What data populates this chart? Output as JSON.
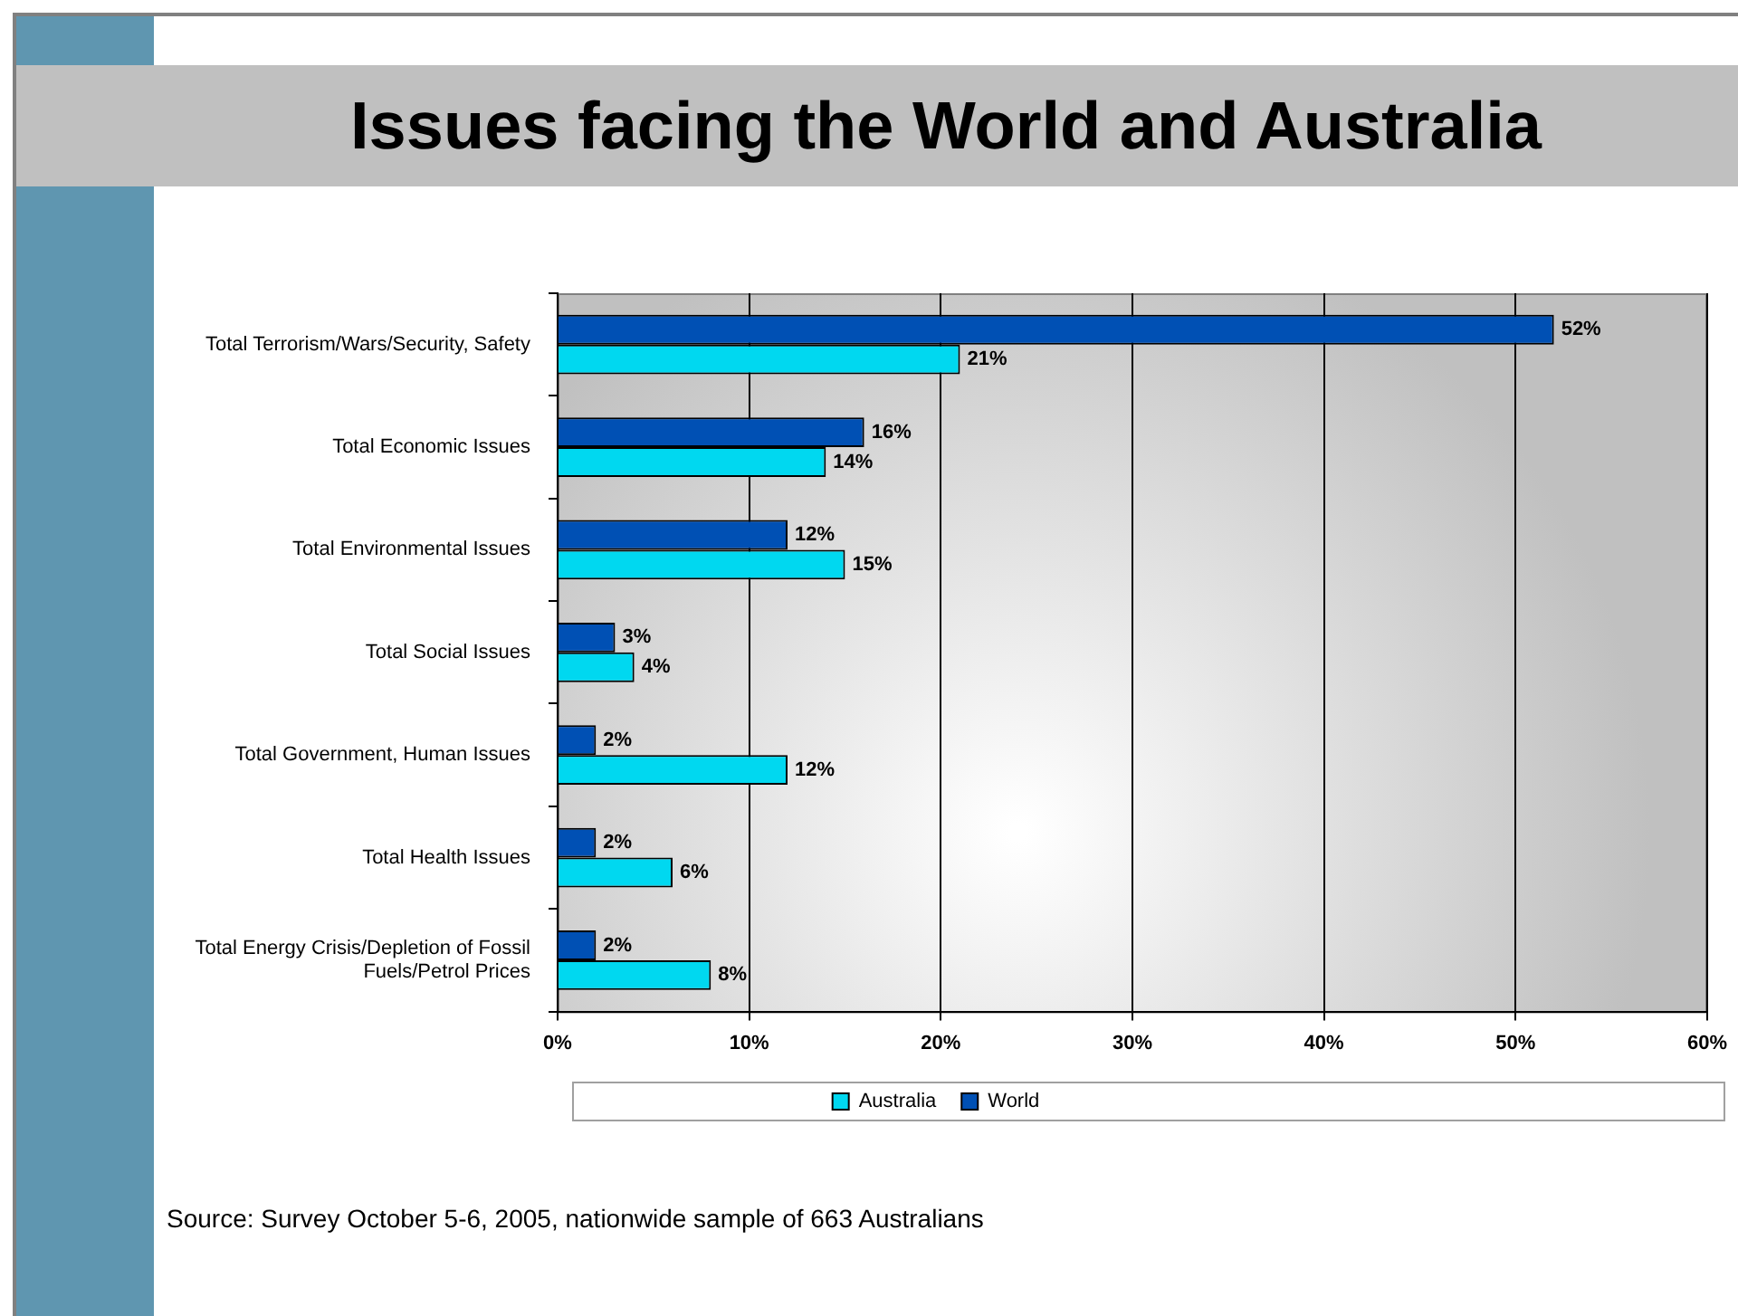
{
  "chart_data": {
    "type": "bar",
    "orientation": "horizontal",
    "title": "Issues facing the World and Australia",
    "categories": [
      "Total Terrorism/Wars/Security, Safety",
      "Total Economic Issues",
      "Total Environmental Issues",
      "Total Social Issues",
      "Total Government, Human Issues",
      "Total Health Issues",
      "Total Energy Crisis/Depletion of Fossil Fuels/Petrol Prices"
    ],
    "series": [
      {
        "name": "Australia",
        "color": "#00d8f0",
        "values": [
          21,
          14,
          15,
          4,
          12,
          6,
          8
        ],
        "value_labels": [
          "21%",
          "14%",
          "15%",
          "4%",
          "12%",
          "6%",
          "8%"
        ]
      },
      {
        "name": "World",
        "color": "#0050b4",
        "values": [
          52,
          16,
          12,
          3,
          2,
          2,
          2
        ],
        "value_labels": [
          "52%",
          "16%",
          "12%",
          "3%",
          "2%",
          "2%",
          "2%"
        ]
      }
    ],
    "xlim": [
      0,
      60
    ],
    "xticks": [
      {
        "value": 0,
        "label": "0%"
      },
      {
        "value": 10,
        "label": "10%"
      },
      {
        "value": 20,
        "label": "20%"
      },
      {
        "value": 30,
        "label": "30%"
      },
      {
        "value": 40,
        "label": "40%"
      },
      {
        "value": 50,
        "label": "50%"
      },
      {
        "value": 60,
        "label": "60%"
      }
    ],
    "grid": "x",
    "legend": "bottom",
    "annotations": [
      "Source: Survey October 5-6, 2005, nationwide sample of 663 Australians"
    ]
  }
}
